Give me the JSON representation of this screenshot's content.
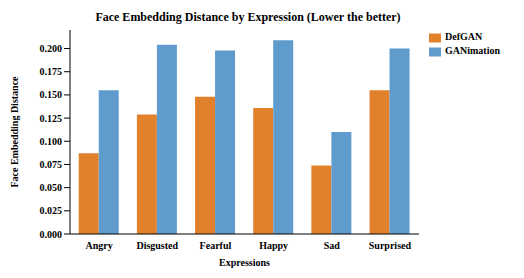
{
  "chart_data": {
    "type": "bar",
    "title": "Face Embedding Distance by Expression (Lower the better)",
    "x_label": "Expressions",
    "y_label": "Face Embedding Distance",
    "categories": [
      "Angry",
      "Disgusted",
      "Fearful",
      "Happy",
      "Sad",
      "Surprised"
    ],
    "series": [
      {
        "name": "DefGAN",
        "color": "#e1812c",
        "values": [
          0.087,
          0.129,
          0.148,
          0.136,
          0.074,
          0.155
        ]
      },
      {
        "name": "GANimation",
        "color": "#5f9bcc",
        "values": [
          0.155,
          0.204,
          0.198,
          0.209,
          0.11,
          0.2
        ]
      }
    ],
    "ylim": [
      0,
      0.22
    ],
    "yticks": [
      {
        "value": 0,
        "label": "0.000"
      },
      {
        "value": 0.025,
        "label": "0.025"
      },
      {
        "value": 0.05,
        "label": "0.050"
      },
      {
        "value": 0.075,
        "label": "0.075"
      },
      {
        "value": 0.1,
        "label": "0.100"
      },
      {
        "value": 0.125,
        "label": "0.125"
      },
      {
        "value": 0.15,
        "label": "0.150"
      },
      {
        "value": 0.175,
        "label": "0.175"
      },
      {
        "value": 0.2,
        "label": "0.200"
      }
    ],
    "grid": false,
    "legend": "right"
  }
}
